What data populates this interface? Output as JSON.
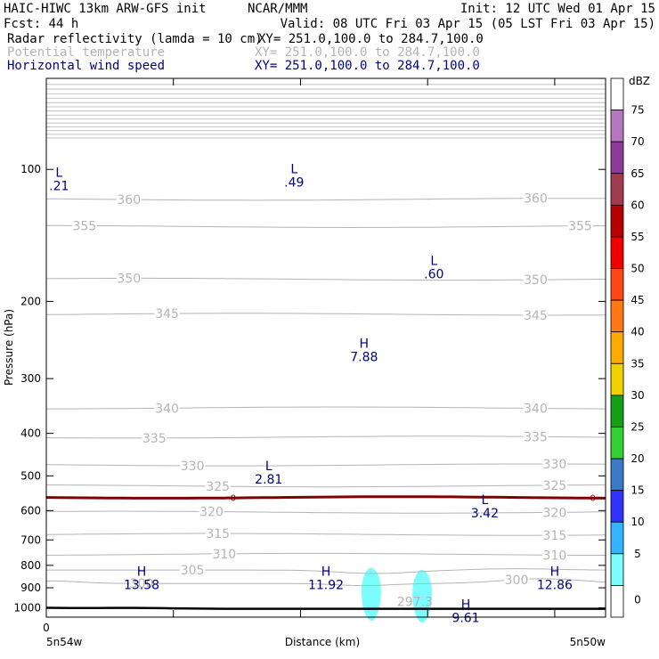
{
  "header": {
    "model": "HAIC-HIWC 13km ARW-GFS init",
    "org": "NCAR/MMM",
    "init": "Init: 12 UTC Wed 01 Apr 15",
    "fcst": "Fcst:    44 h",
    "valid": "Valid: 08 UTC Fri 03 Apr 15 (05 LST Fri 03 Apr 15)",
    "fields": [
      {
        "name": "Radar reflectivity (lamda = 10 cm)",
        "xy": "XY=  251.0,100.0 to 284.7,100.0",
        "color": "#000000"
      },
      {
        "name": "Potential temperature",
        "xy": "XY=  251.0,100.0 to 284.7,100.0",
        "color": "#b4b4b4"
      },
      {
        "name": "Horizontal wind speed",
        "xy": "XY=  251.0,100.0 to 284.7,100.0",
        "color": "#000080"
      }
    ]
  },
  "chart_data": {
    "type": "cross-section",
    "ylabel": "Pressure (hPa)",
    "xlabel": "Distance (km)",
    "y_scale": "log",
    "ylim": [
      1050,
      62
    ],
    "y_ticks": [
      100,
      200,
      300,
      400,
      500,
      600,
      700,
      800,
      900,
      1000
    ],
    "x_ticks": [
      0,
      1,
      2,
      3,
      4
    ],
    "x_tick_labels": [
      {
        "value": 0,
        "label": "0"
      }
    ],
    "x_end_labels": [
      "5n54w",
      "5n50w"
    ],
    "theta_contours": [
      {
        "level": 300,
        "p": 880,
        "labels": [
          {
            "x": 0.75,
            "text": "300"
          },
          {
            "x": 3.7,
            "text": "300"
          }
        ]
      },
      {
        "level": 305,
        "p": 820,
        "labels": [
          {
            "x": 1.15,
            "text": "305"
          }
        ]
      },
      {
        "level": 310,
        "p": 755,
        "labels": [
          {
            "x": 1.4,
            "text": "310"
          },
          {
            "x": 4.0,
            "text": "310"
          }
        ]
      },
      {
        "level": 315,
        "p": 680,
        "labels": [
          {
            "x": 1.35,
            "text": "315"
          },
          {
            "x": 4.0,
            "text": "315"
          }
        ]
      },
      {
        "level": 320,
        "p": 605,
        "labels": [
          {
            "x": 1.3,
            "text": "320"
          },
          {
            "x": 4.0,
            "text": "320"
          }
        ]
      },
      {
        "level": 325,
        "p": 527,
        "labels": [
          {
            "x": 1.35,
            "text": "325"
          },
          {
            "x": 4.0,
            "text": "325"
          }
        ]
      },
      {
        "level": 330,
        "p": 472,
        "labels": [
          {
            "x": 1.15,
            "text": "330"
          },
          {
            "x": 4.0,
            "text": "330"
          }
        ]
      },
      {
        "level": 335,
        "p": 408,
        "labels": [
          {
            "x": 0.85,
            "text": "335"
          },
          {
            "x": 3.85,
            "text": "335"
          }
        ]
      },
      {
        "level": 340,
        "p": 350,
        "labels": [
          {
            "x": 0.95,
            "text": "340"
          },
          {
            "x": 3.85,
            "text": "340"
          }
        ]
      },
      {
        "level": 345,
        "p": 214,
        "labels": [
          {
            "x": 0.95,
            "text": "345"
          },
          {
            "x": 3.85,
            "text": "345"
          }
        ]
      },
      {
        "level": 350,
        "p": 178,
        "labels": [
          {
            "x": 0.65,
            "text": "350"
          },
          {
            "x": 3.85,
            "text": "350"
          }
        ]
      },
      {
        "level": 355,
        "p": 135,
        "labels": [
          {
            "x": 0.3,
            "text": "355"
          },
          {
            "x": 4.2,
            "text": "355"
          }
        ]
      },
      {
        "level": 360,
        "p": 117,
        "labels": [
          {
            "x": 0.65,
            "text": "360"
          },
          {
            "x": 3.85,
            "text": "360"
          }
        ]
      }
    ],
    "freezing_level": {
      "label": "0",
      "p": 560
    },
    "terrain_p": 1005,
    "wind_extrema": [
      {
        "type": "L",
        "value": ".21",
        "x": 0.1,
        "p": 104
      },
      {
        "type": "L",
        "value": ".49",
        "x": 1.95,
        "p": 102
      },
      {
        "type": "L",
        "value": ".60",
        "x": 3.05,
        "p": 165
      },
      {
        "type": "H",
        "value": "7.88",
        "x": 2.5,
        "p": 255
      },
      {
        "type": "L",
        "value": "2.81",
        "x": 1.75,
        "p": 485
      },
      {
        "type": "L",
        "value": "3.42",
        "x": 3.45,
        "p": 580
      },
      {
        "type": "H",
        "value": "13.58",
        "x": 0.75,
        "p": 845
      },
      {
        "type": "H",
        "value": "11.92",
        "x": 2.2,
        "p": 845
      },
      {
        "type": "H",
        "value": "12.86",
        "x": 4.0,
        "p": 845
      },
      {
        "type": "H",
        "value": "9.61",
        "x": 3.3,
        "p": 1005
      }
    ],
    "theta_extra": [
      {
        "value": "297.3",
        "x": 2.9,
        "p": 990
      }
    ],
    "reflectivity_cells": [
      {
        "x": 2.55,
        "p": 940,
        "dbz": 7
      },
      {
        "x": 2.95,
        "p": 950,
        "dbz": 8
      }
    ],
    "colorbar": {
      "title": "dBZ",
      "levels": [
        0,
        5,
        10,
        15,
        20,
        25,
        30,
        35,
        40,
        45,
        50,
        55,
        60,
        65,
        70,
        75
      ],
      "colors": [
        "#ffffff",
        "#7cfdfd",
        "#33b4ff",
        "#3232ff",
        "#3c78c8",
        "#32d232",
        "#14a014",
        "#f0d200",
        "#ffaa00",
        "#ff7814",
        "#ff4614",
        "#f00000",
        "#b40000",
        "#a03c50",
        "#8c3c96",
        "#b478be"
      ]
    }
  }
}
